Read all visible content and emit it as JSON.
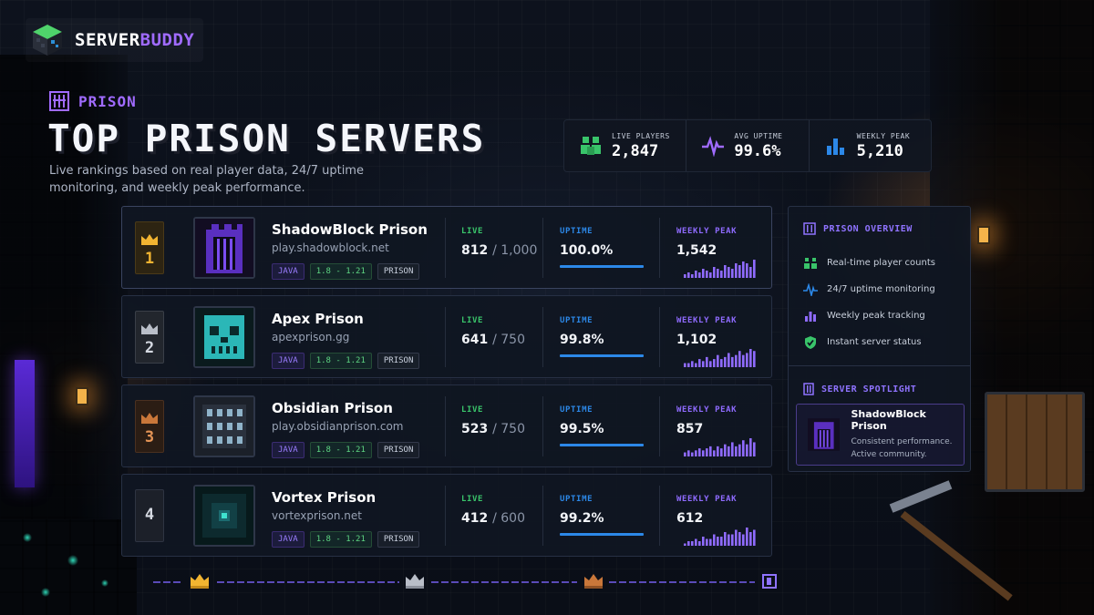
{
  "brand": {
    "name_part1": "SERVER",
    "name_part2": "BUDDY"
  },
  "category": {
    "label": "PRISON"
  },
  "page": {
    "title": "TOP PRISON SERVERS",
    "subtitle": "Live rankings based on real player data, 24/7 uptime monitoring, and weekly peak performance."
  },
  "stats": [
    {
      "label": "LIVE PLAYERS",
      "value": "2,847",
      "icon": "players-icon",
      "color": "#39c46a"
    },
    {
      "label": "AVG UPTIME",
      "value": "99.6%",
      "icon": "pulse-icon",
      "color": "#a06bff"
    },
    {
      "label": "WEEKLY PEAK",
      "value": "5,210",
      "icon": "bar-chart-icon",
      "color": "#2c88e8"
    }
  ],
  "columns": {
    "live": "LIVE",
    "uptime": "UPTIME",
    "weekly_peak": "WEEKLY PEAK"
  },
  "servers": [
    {
      "rank": "1",
      "name": "ShadowBlock Prison",
      "host": "play.shadowblock.net",
      "tags": [
        "JAVA",
        "1.8 - 1.21",
        "PRISON"
      ],
      "live": "812",
      "max": "/ 1,000",
      "uptime": "100.0%",
      "peak": "1,542",
      "crown": "gold",
      "spark": [
        2,
        3,
        2,
        4,
        3,
        5,
        4,
        3,
        6,
        5,
        4,
        7,
        6,
        5,
        8,
        7,
        9,
        8,
        6,
        10
      ]
    },
    {
      "rank": "2",
      "name": "Apex Prison",
      "host": "apexprison.gg",
      "tags": [
        "JAVA",
        "1.8 - 1.21",
        "PRISON"
      ],
      "live": "641",
      "max": "/ 750",
      "uptime": "99.8%",
      "peak": "1,102",
      "crown": "silver",
      "spark": [
        2,
        2,
        3,
        2,
        4,
        3,
        5,
        3,
        4,
        6,
        4,
        5,
        7,
        5,
        6,
        8,
        6,
        7,
        9,
        8
      ]
    },
    {
      "rank": "3",
      "name": "Obsidian Prison",
      "host": "play.obsidianprison.com",
      "tags": [
        "JAVA",
        "1.8 - 1.21",
        "PRISON"
      ],
      "live": "523",
      "max": "/ 750",
      "uptime": "99.5%",
      "peak": "857",
      "crown": "bronze",
      "spark": [
        2,
        3,
        2,
        3,
        4,
        3,
        4,
        5,
        3,
        5,
        4,
        6,
        5,
        7,
        5,
        6,
        8,
        6,
        9,
        7
      ]
    },
    {
      "rank": "4",
      "name": "Vortex Prison",
      "host": "vortexprison.net",
      "tags": [
        "JAVA",
        "1.8 - 1.21",
        "PRISON"
      ],
      "live": "412",
      "max": "/ 600",
      "uptime": "99.2%",
      "peak": "612",
      "crown": "none",
      "spark": [
        1,
        2,
        2,
        3,
        2,
        4,
        3,
        3,
        5,
        4,
        4,
        6,
        5,
        5,
        7,
        6,
        5,
        8,
        6,
        7
      ]
    }
  ],
  "overview": {
    "title": "PRISON OVERVIEW",
    "features": [
      {
        "label": "Real-time player counts",
        "icon": "players-icon"
      },
      {
        "label": "24/7 uptime monitoring",
        "icon": "pulse-icon"
      },
      {
        "label": "Weekly peak tracking",
        "icon": "bar-chart-icon"
      },
      {
        "label": "Instant server status",
        "icon": "shield-check-icon"
      }
    ]
  },
  "spotlight": {
    "title": "SERVER SPOTLIGHT",
    "name": "ShadowBlock Prison",
    "desc1": "Consistent performance.",
    "desc2": "Active community."
  },
  "colors": {
    "accent": "#a06bff",
    "live": "#39c46a",
    "uptime": "#2c88e8",
    "peak": "#8f6bff",
    "gold": "#f2b431",
    "silver": "#b9bec8",
    "bronze": "#c9773a"
  }
}
